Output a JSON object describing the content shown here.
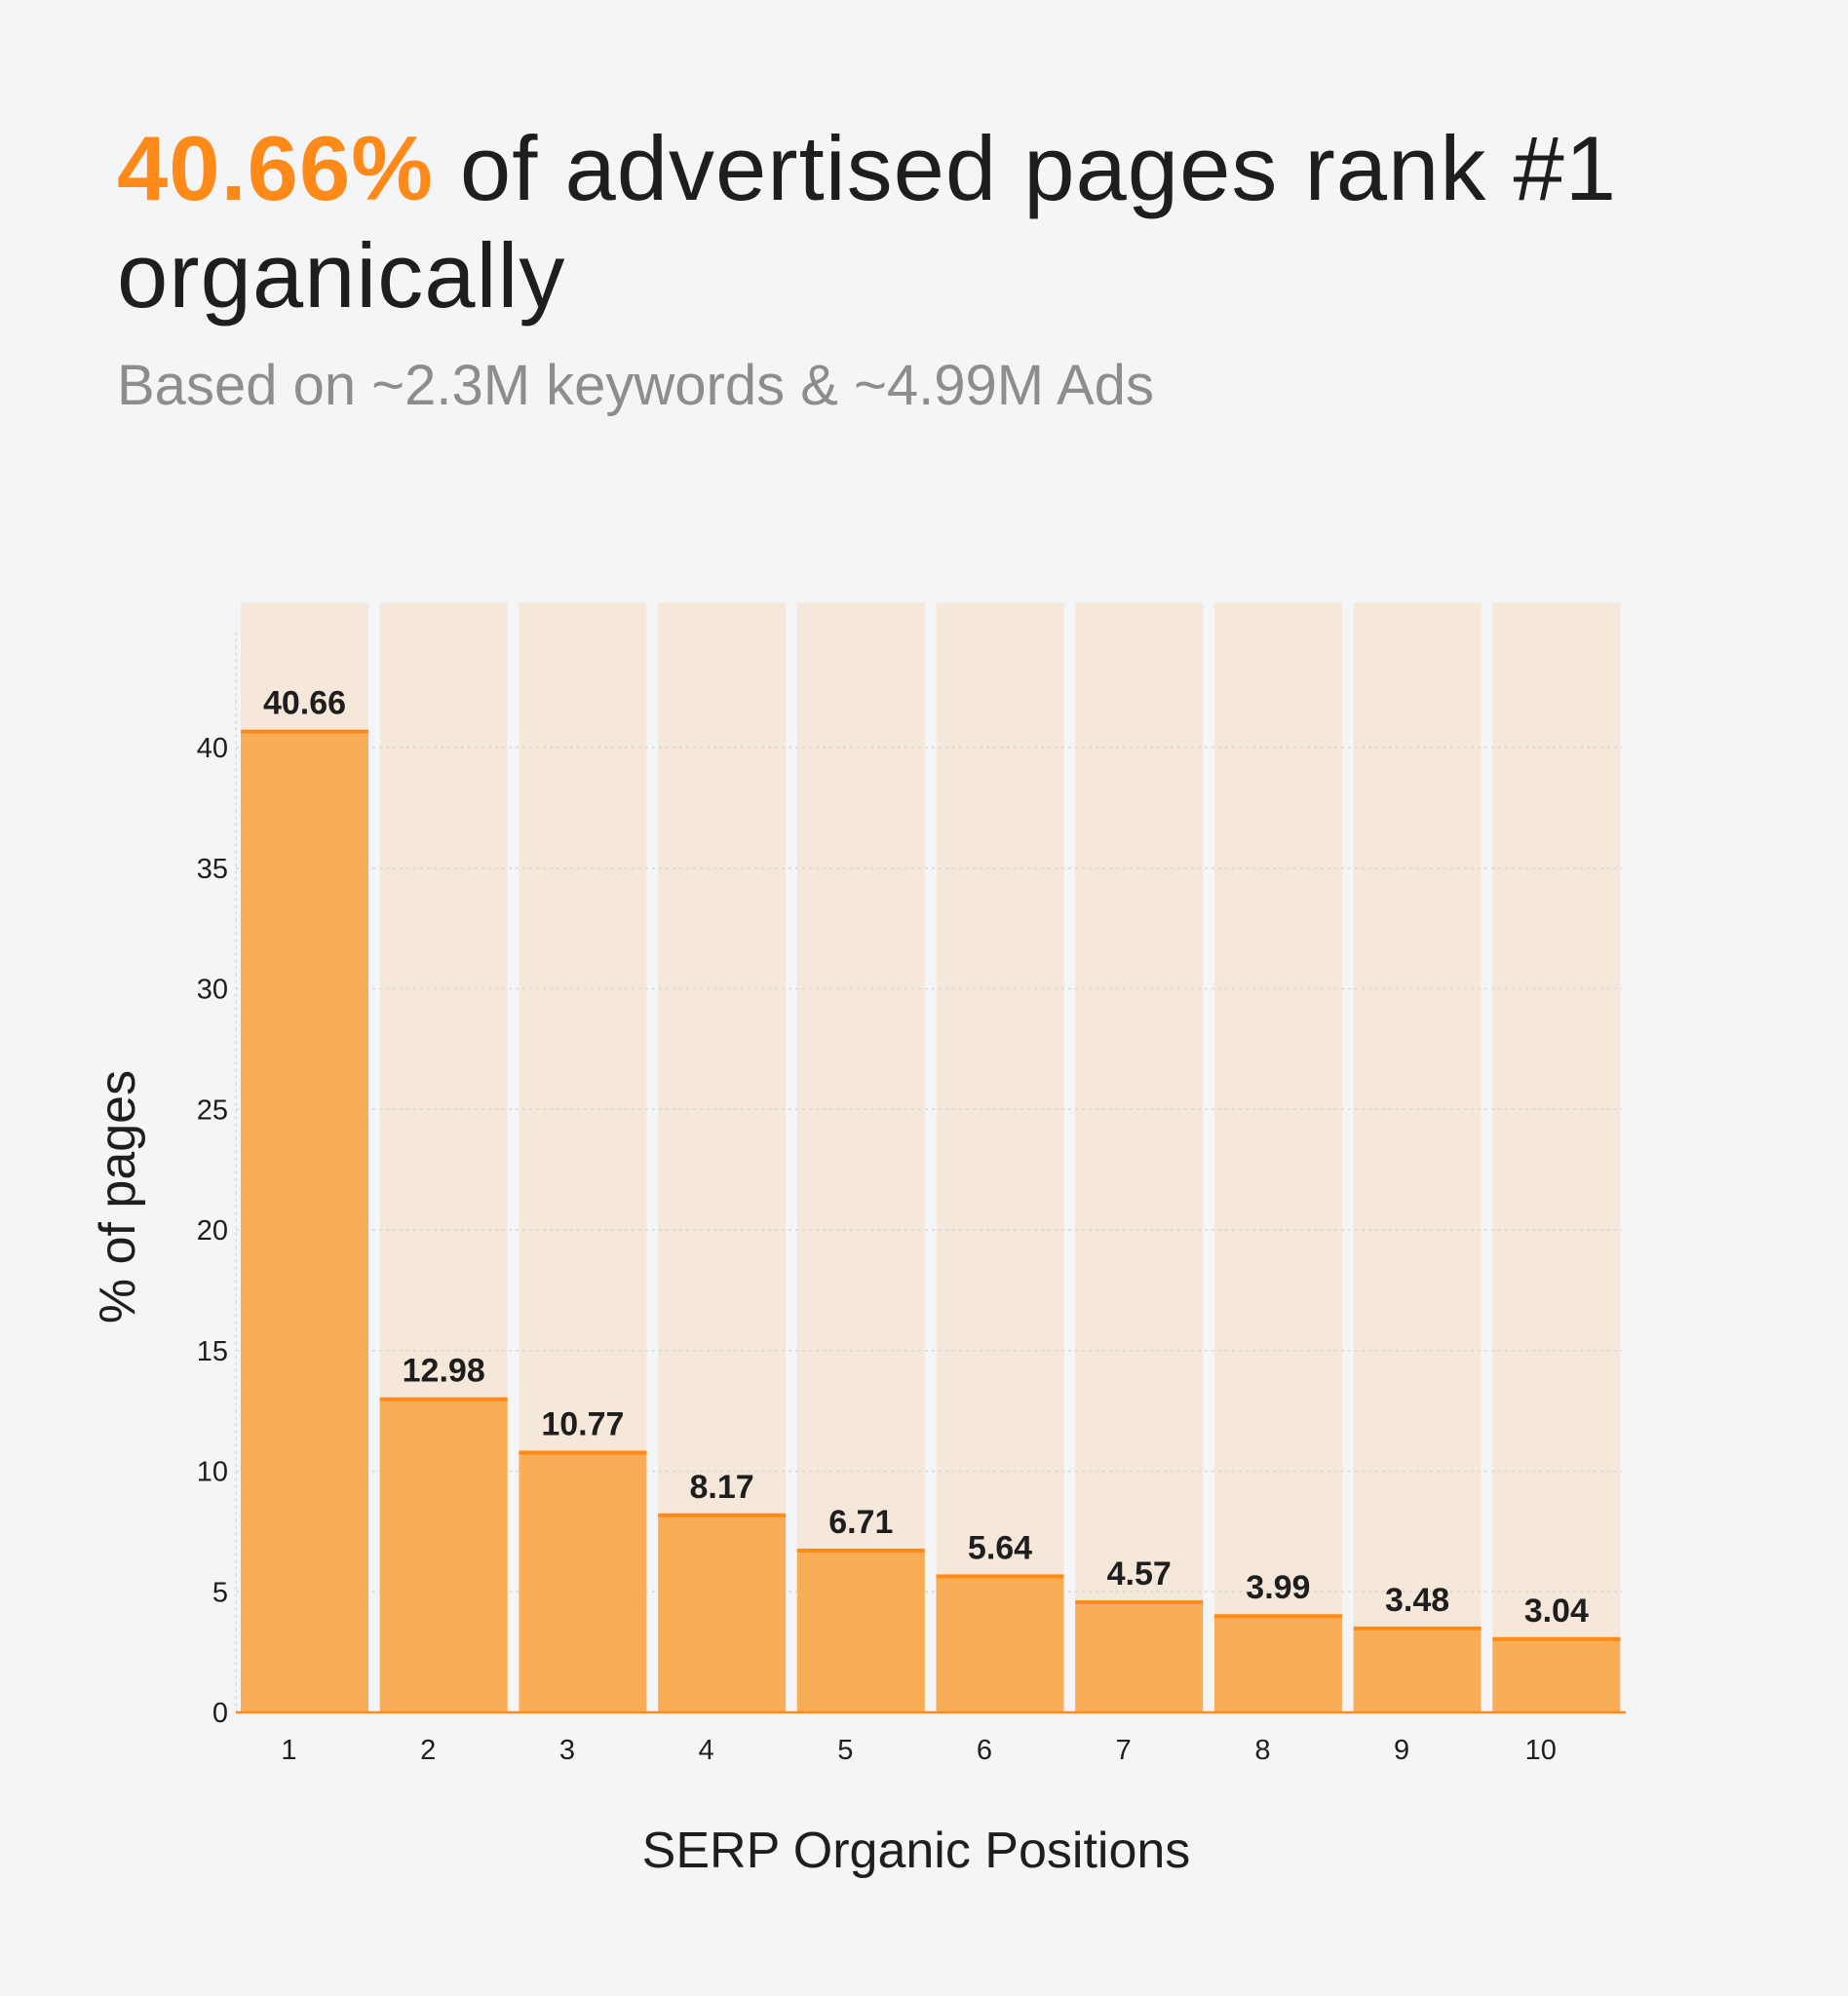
{
  "header": {
    "title_highlight": "40.66%",
    "title_rest": " of advertised pages rank #1 organically",
    "subtitle": "Based on ~2.3M keywords & ~4.99M Ads"
  },
  "colors": {
    "accent": "#ff8a1a",
    "bar": "#f9ad57",
    "background_column": "#f5e8da",
    "page_bg": "#f4f5f7"
  },
  "chart_data": {
    "type": "bar",
    "xlabel": "SERP Organic Positions",
    "ylabel": "% of pages",
    "categories": [
      "1",
      "2",
      "3",
      "4",
      "5",
      "6",
      "7",
      "8",
      "9",
      "10"
    ],
    "values": [
      40.66,
      12.98,
      10.77,
      8.17,
      6.71,
      5.64,
      4.57,
      3.99,
      3.48,
      3.04
    ],
    "value_labels": [
      "40.66",
      "12.98",
      "10.77",
      "8.17",
      "6.71",
      "5.64",
      "4.57",
      "3.99",
      "3.48",
      "3.04"
    ],
    "yticks": [
      0,
      5,
      10,
      15,
      20,
      25,
      30,
      35,
      40
    ],
    "ylim": [
      0,
      46
    ],
    "grid": true,
    "legend": "none"
  }
}
